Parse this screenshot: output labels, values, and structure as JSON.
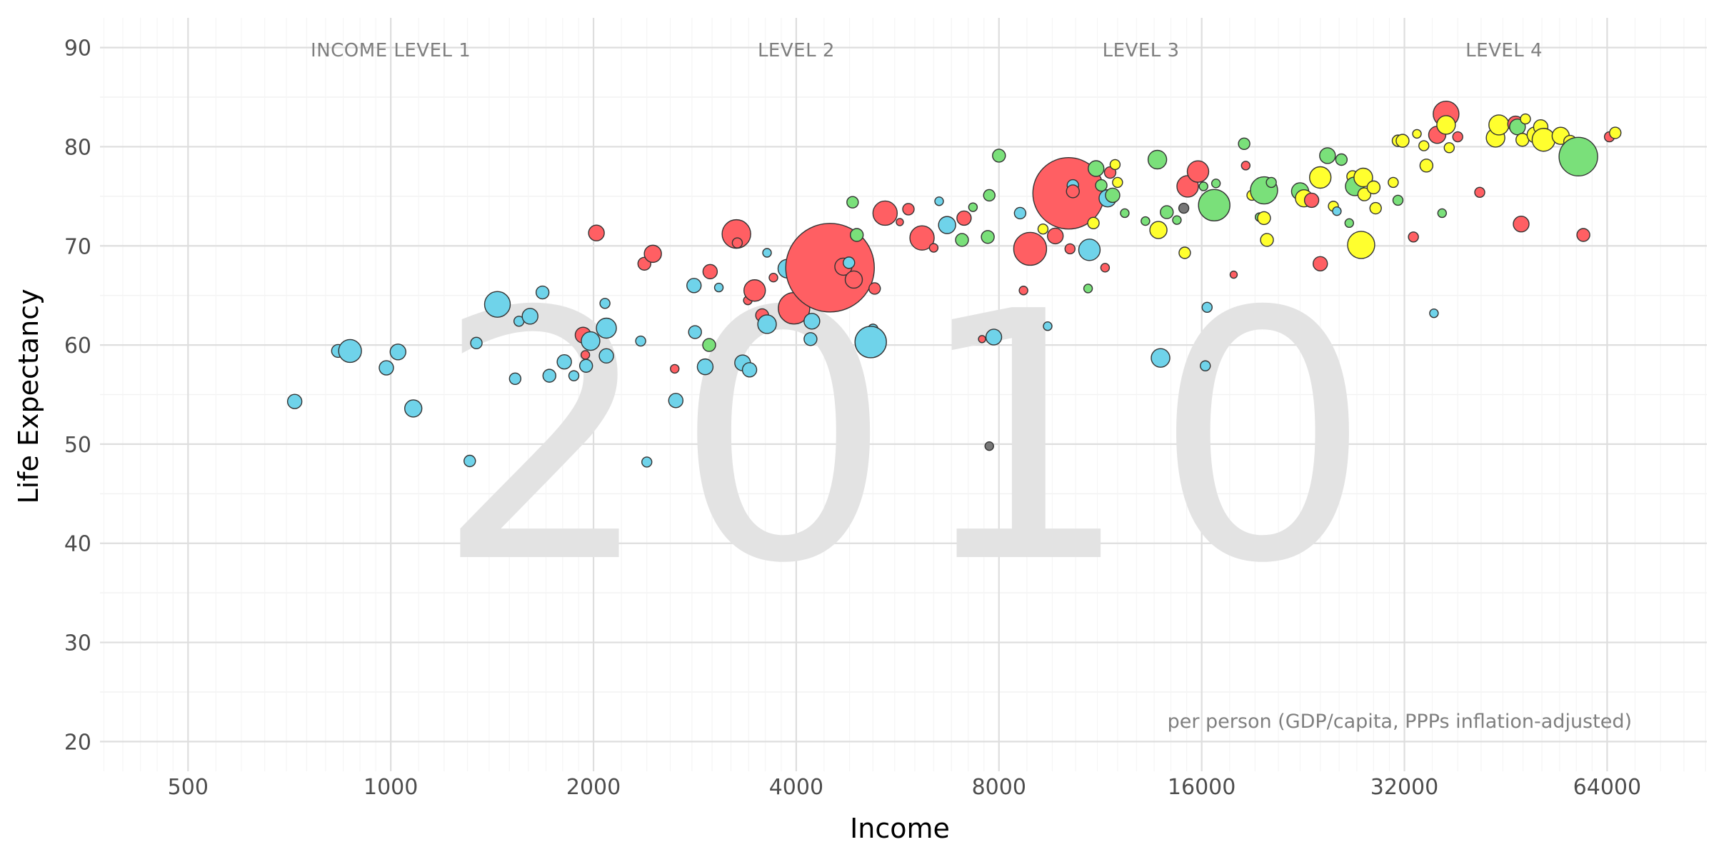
{
  "chart_data": {
    "type": "scatter",
    "title": "",
    "xlabel": "Income",
    "ylabel": "Life Expectancy",
    "x_scale": "log2",
    "xlim": [
      370,
      90000
    ],
    "ylim": [
      17,
      93
    ],
    "x_ticks": [
      500,
      1000,
      2000,
      4000,
      8000,
      16000,
      32000,
      64000
    ],
    "x_tick_labels": [
      "500",
      "1000",
      "2000",
      "4000",
      "8000",
      "16000",
      "32000",
      "64000"
    ],
    "y_ticks": [
      20,
      30,
      40,
      50,
      60,
      70,
      80,
      90
    ],
    "y_tick_labels": [
      "20",
      "30",
      "40",
      "50",
      "60",
      "70",
      "80",
      "90"
    ],
    "grid": true,
    "background_year": "2010",
    "income_levels": [
      {
        "label": "INCOME LEVEL 1",
        "x": 1000
      },
      {
        "label": "LEVEL 2",
        "x": 4000
      },
      {
        "label": "LEVEL 3",
        "x": 13000
      },
      {
        "label": "LEVEL 4",
        "x": 45000
      }
    ],
    "caption": "per person (GDP/capita, PPPs inflation-adjusted)",
    "colors": {
      "africa": "#6fd3ea",
      "asia": "#ff5f63",
      "americas": "#7ae07a",
      "europe": "#ffff2e",
      "other": "#777777"
    },
    "points": [
      {
        "x": 720,
        "y": 54.3,
        "s": 10,
        "c": "africa"
      },
      {
        "x": 835,
        "y": 59.4,
        "s": 9,
        "c": "africa"
      },
      {
        "x": 870,
        "y": 59.4,
        "s": 16,
        "c": "africa"
      },
      {
        "x": 985,
        "y": 57.7,
        "s": 10,
        "c": "africa"
      },
      {
        "x": 1025,
        "y": 59.3,
        "s": 11,
        "c": "africa"
      },
      {
        "x": 1080,
        "y": 53.6,
        "s": 12,
        "c": "africa"
      },
      {
        "x": 1310,
        "y": 48.3,
        "s": 8,
        "c": "africa"
      },
      {
        "x": 1340,
        "y": 60.2,
        "s": 8,
        "c": "africa"
      },
      {
        "x": 1440,
        "y": 64.1,
        "s": 18,
        "c": "africa"
      },
      {
        "x": 1530,
        "y": 56.6,
        "s": 8,
        "c": "africa"
      },
      {
        "x": 1550,
        "y": 62.4,
        "s": 7,
        "c": "africa"
      },
      {
        "x": 1610,
        "y": 62.9,
        "s": 11,
        "c": "africa"
      },
      {
        "x": 1680,
        "y": 65.3,
        "s": 9,
        "c": "africa"
      },
      {
        "x": 1720,
        "y": 56.9,
        "s": 9,
        "c": "africa"
      },
      {
        "x": 1810,
        "y": 58.3,
        "s": 10,
        "c": "africa"
      },
      {
        "x": 1870,
        "y": 56.9,
        "s": 7,
        "c": "africa"
      },
      {
        "x": 1930,
        "y": 61.0,
        "s": 11,
        "c": "asia"
      },
      {
        "x": 1945,
        "y": 59.0,
        "s": 6,
        "c": "asia"
      },
      {
        "x": 1950,
        "y": 57.9,
        "s": 9,
        "c": "africa"
      },
      {
        "x": 1980,
        "y": 60.4,
        "s": 13,
        "c": "africa"
      },
      {
        "x": 2020,
        "y": 71.3,
        "s": 11,
        "c": "asia"
      },
      {
        "x": 2080,
        "y": 64.2,
        "s": 7,
        "c": "africa"
      },
      {
        "x": 2090,
        "y": 61.7,
        "s": 14,
        "c": "africa"
      },
      {
        "x": 2090,
        "y": 58.9,
        "s": 10,
        "c": "africa"
      },
      {
        "x": 2350,
        "y": 60.4,
        "s": 7,
        "c": "africa"
      },
      {
        "x": 2380,
        "y": 68.2,
        "s": 9,
        "c": "asia"
      },
      {
        "x": 2400,
        "y": 48.2,
        "s": 7,
        "c": "africa"
      },
      {
        "x": 2450,
        "y": 69.2,
        "s": 12,
        "c": "asia"
      },
      {
        "x": 2640,
        "y": 57.6,
        "s": 6,
        "c": "asia"
      },
      {
        "x": 2650,
        "y": 54.4,
        "s": 10,
        "c": "africa"
      },
      {
        "x": 2820,
        "y": 66.0,
        "s": 10,
        "c": "africa"
      },
      {
        "x": 2830,
        "y": 61.3,
        "s": 9,
        "c": "africa"
      },
      {
        "x": 2930,
        "y": 57.8,
        "s": 11,
        "c": "africa"
      },
      {
        "x": 2970,
        "y": 60.0,
        "s": 9,
        "c": "americas"
      },
      {
        "x": 2980,
        "y": 67.4,
        "s": 10,
        "c": "asia"
      },
      {
        "x": 3070,
        "y": 65.8,
        "s": 6,
        "c": "africa"
      },
      {
        "x": 3260,
        "y": 71.2,
        "s": 20,
        "c": "asia"
      },
      {
        "x": 3270,
        "y": 70.3,
        "s": 7,
        "c": "asia"
      },
      {
        "x": 3330,
        "y": 58.2,
        "s": 11,
        "c": "africa"
      },
      {
        "x": 3410,
        "y": 57.5,
        "s": 10,
        "c": "africa"
      },
      {
        "x": 3390,
        "y": 64.5,
        "s": 6,
        "c": "asia"
      },
      {
        "x": 3470,
        "y": 65.5,
        "s": 15,
        "c": "asia"
      },
      {
        "x": 3560,
        "y": 63.0,
        "s": 9,
        "c": "asia"
      },
      {
        "x": 3620,
        "y": 69.3,
        "s": 6,
        "c": "africa"
      },
      {
        "x": 3620,
        "y": 62.1,
        "s": 13,
        "c": "africa"
      },
      {
        "x": 3700,
        "y": 66.8,
        "s": 6,
        "c": "asia"
      },
      {
        "x": 3850,
        "y": 64.2,
        "s": 6,
        "c": "asia"
      },
      {
        "x": 3880,
        "y": 67.7,
        "s": 13,
        "c": "africa"
      },
      {
        "x": 3970,
        "y": 63.7,
        "s": 22,
        "c": "asia"
      },
      {
        "x": 4220,
        "y": 62.4,
        "s": 11,
        "c": "africa"
      },
      {
        "x": 4200,
        "y": 60.6,
        "s": 9,
        "c": "africa"
      },
      {
        "x": 4380,
        "y": 70.4,
        "s": 7,
        "c": "asia"
      },
      {
        "x": 4490,
        "y": 67.8,
        "s": 62,
        "c": "asia"
      },
      {
        "x": 4700,
        "y": 67.9,
        "s": 12,
        "c": "asia"
      },
      {
        "x": 4790,
        "y": 68.3,
        "s": 8,
        "c": "africa"
      },
      {
        "x": 4850,
        "y": 74.4,
        "s": 8,
        "c": "americas"
      },
      {
        "x": 4870,
        "y": 66.6,
        "s": 12,
        "c": "asia"
      },
      {
        "x": 4920,
        "y": 71.1,
        "s": 9,
        "c": "americas"
      },
      {
        "x": 5200,
        "y": 61.6,
        "s": 7,
        "c": "africa"
      },
      {
        "x": 5160,
        "y": 60.3,
        "s": 22,
        "c": "africa"
      },
      {
        "x": 5230,
        "y": 65.7,
        "s": 8,
        "c": "asia"
      },
      {
        "x": 5420,
        "y": 73.3,
        "s": 17,
        "c": "asia"
      },
      {
        "x": 5700,
        "y": 72.4,
        "s": 5,
        "c": "asia"
      },
      {
        "x": 5870,
        "y": 73.7,
        "s": 8,
        "c": "asia"
      },
      {
        "x": 6150,
        "y": 70.8,
        "s": 17,
        "c": "asia"
      },
      {
        "x": 6400,
        "y": 69.8,
        "s": 6,
        "c": "asia"
      },
      {
        "x": 6520,
        "y": 74.5,
        "s": 6,
        "c": "africa"
      },
      {
        "x": 6700,
        "y": 72.1,
        "s": 12,
        "c": "africa"
      },
      {
        "x": 7050,
        "y": 70.6,
        "s": 9,
        "c": "americas"
      },
      {
        "x": 7100,
        "y": 72.8,
        "s": 10,
        "c": "asia"
      },
      {
        "x": 7320,
        "y": 73.9,
        "s": 6,
        "c": "americas"
      },
      {
        "x": 7550,
        "y": 60.6,
        "s": 5,
        "c": "asia"
      },
      {
        "x": 7700,
        "y": 70.9,
        "s": 9,
        "c": "americas"
      },
      {
        "x": 7740,
        "y": 75.1,
        "s": 8,
        "c": "americas"
      },
      {
        "x": 7740,
        "y": 49.8,
        "s": 6,
        "c": "other"
      },
      {
        "x": 7860,
        "y": 60.8,
        "s": 11,
        "c": "africa"
      },
      {
        "x": 8000,
        "y": 79.1,
        "s": 9,
        "c": "americas"
      },
      {
        "x": 8600,
        "y": 73.3,
        "s": 8,
        "c": "africa"
      },
      {
        "x": 8700,
        "y": 65.5,
        "s": 6,
        "c": "asia"
      },
      {
        "x": 8900,
        "y": 69.7,
        "s": 23,
        "c": "asia"
      },
      {
        "x": 9300,
        "y": 71.7,
        "s": 7,
        "c": "europe"
      },
      {
        "x": 9450,
        "y": 61.9,
        "s": 6,
        "c": "africa"
      },
      {
        "x": 9700,
        "y": 71.0,
        "s": 11,
        "c": "asia"
      },
      {
        "x": 9800,
        "y": 75.9,
        "s": 6,
        "c": "americas"
      },
      {
        "x": 10150,
        "y": 75.3,
        "s": 50,
        "c": "asia"
      },
      {
        "x": 10200,
        "y": 69.7,
        "s": 7,
        "c": "asia"
      },
      {
        "x": 10300,
        "y": 76.1,
        "s": 8,
        "c": "africa"
      },
      {
        "x": 10300,
        "y": 75.5,
        "s": 9,
        "c": "asia"
      },
      {
        "x": 10850,
        "y": 65.7,
        "s": 6,
        "c": "americas"
      },
      {
        "x": 10900,
        "y": 69.6,
        "s": 15,
        "c": "africa"
      },
      {
        "x": 11050,
        "y": 72.3,
        "s": 8,
        "c": "europe"
      },
      {
        "x": 11150,
        "y": 77.8,
        "s": 11,
        "c": "americas"
      },
      {
        "x": 11350,
        "y": 76.1,
        "s": 8,
        "c": "americas"
      },
      {
        "x": 11500,
        "y": 67.8,
        "s": 6,
        "c": "asia"
      },
      {
        "x": 11600,
        "y": 74.8,
        "s": 12,
        "c": "africa"
      },
      {
        "x": 11700,
        "y": 77.4,
        "s": 8,
        "c": "asia"
      },
      {
        "x": 11800,
        "y": 75.1,
        "s": 10,
        "c": "americas"
      },
      {
        "x": 11900,
        "y": 78.2,
        "s": 7,
        "c": "europe"
      },
      {
        "x": 12000,
        "y": 76.4,
        "s": 7,
        "c": "europe"
      },
      {
        "x": 12300,
        "y": 73.3,
        "s": 6,
        "c": "americas"
      },
      {
        "x": 13200,
        "y": 72.5,
        "s": 6,
        "c": "americas"
      },
      {
        "x": 13750,
        "y": 78.7,
        "s": 13,
        "c": "americas"
      },
      {
        "x": 13800,
        "y": 71.6,
        "s": 12,
        "c": "europe"
      },
      {
        "x": 13900,
        "y": 58.7,
        "s": 13,
        "c": "africa"
      },
      {
        "x": 14200,
        "y": 73.4,
        "s": 9,
        "c": "americas"
      },
      {
        "x": 14700,
        "y": 72.6,
        "s": 6,
        "c": "americas"
      },
      {
        "x": 15050,
        "y": 73.8,
        "s": 7,
        "c": "other"
      },
      {
        "x": 15100,
        "y": 69.3,
        "s": 8,
        "c": "europe"
      },
      {
        "x": 15250,
        "y": 76.0,
        "s": 15,
        "c": "asia"
      },
      {
        "x": 15800,
        "y": 77.5,
        "s": 15,
        "c": "asia"
      },
      {
        "x": 16100,
        "y": 76.0,
        "s": 6,
        "c": "americas"
      },
      {
        "x": 16200,
        "y": 57.9,
        "s": 7,
        "c": "africa"
      },
      {
        "x": 16300,
        "y": 63.8,
        "s": 7,
        "c": "africa"
      },
      {
        "x": 16600,
        "y": 74.3,
        "s": 8,
        "c": "europe"
      },
      {
        "x": 16700,
        "y": 74.1,
        "s": 22,
        "c": "americas"
      },
      {
        "x": 16800,
        "y": 76.3,
        "s": 6,
        "c": "americas"
      },
      {
        "x": 17850,
        "y": 67.1,
        "s": 5,
        "c": "asia"
      },
      {
        "x": 18500,
        "y": 80.3,
        "s": 8,
        "c": "americas"
      },
      {
        "x": 18600,
        "y": 78.1,
        "s": 6,
        "c": "asia"
      },
      {
        "x": 19000,
        "y": 75.1,
        "s": 7,
        "c": "europe"
      },
      {
        "x": 19500,
        "y": 72.9,
        "s": 6,
        "c": "americas"
      },
      {
        "x": 19700,
        "y": 75.4,
        "s": 12,
        "c": "asia"
      },
      {
        "x": 19800,
        "y": 75.6,
        "s": 19,
        "c": "americas"
      },
      {
        "x": 19800,
        "y": 72.8,
        "s": 9,
        "c": "europe"
      },
      {
        "x": 20000,
        "y": 70.6,
        "s": 9,
        "c": "europe"
      },
      {
        "x": 20300,
        "y": 76.4,
        "s": 7,
        "c": "americas"
      },
      {
        "x": 22400,
        "y": 75.5,
        "s": 12,
        "c": "americas"
      },
      {
        "x": 22700,
        "y": 74.8,
        "s": 12,
        "c": "europe"
      },
      {
        "x": 23300,
        "y": 74.6,
        "s": 10,
        "c": "asia"
      },
      {
        "x": 24000,
        "y": 68.2,
        "s": 10,
        "c": "asia"
      },
      {
        "x": 24000,
        "y": 76.9,
        "s": 15,
        "c": "europe"
      },
      {
        "x": 24600,
        "y": 79.1,
        "s": 11,
        "c": "americas"
      },
      {
        "x": 25100,
        "y": 74.0,
        "s": 7,
        "c": "europe"
      },
      {
        "x": 25400,
        "y": 73.5,
        "s": 6,
        "c": "africa"
      },
      {
        "x": 25800,
        "y": 78.7,
        "s": 8,
        "c": "americas"
      },
      {
        "x": 26500,
        "y": 72.3,
        "s": 6,
        "c": "americas"
      },
      {
        "x": 26800,
        "y": 77.0,
        "s": 8,
        "c": "europe"
      },
      {
        "x": 27000,
        "y": 76.0,
        "s": 13,
        "c": "americas"
      },
      {
        "x": 27600,
        "y": 70.1,
        "s": 19,
        "c": "europe"
      },
      {
        "x": 27800,
        "y": 76.9,
        "s": 13,
        "c": "europe"
      },
      {
        "x": 27900,
        "y": 75.2,
        "s": 9,
        "c": "europe"
      },
      {
        "x": 28800,
        "y": 75.9,
        "s": 9,
        "c": "europe"
      },
      {
        "x": 29000,
        "y": 73.8,
        "s": 8,
        "c": "europe"
      },
      {
        "x": 30800,
        "y": 76.4,
        "s": 7,
        "c": "europe"
      },
      {
        "x": 31300,
        "y": 74.6,
        "s": 7,
        "c": "americas"
      },
      {
        "x": 31300,
        "y": 80.6,
        "s": 8,
        "c": "europe"
      },
      {
        "x": 31800,
        "y": 80.6,
        "s": 9,
        "c": "europe"
      },
      {
        "x": 33000,
        "y": 70.9,
        "s": 7,
        "c": "asia"
      },
      {
        "x": 33400,
        "y": 81.3,
        "s": 6,
        "c": "europe"
      },
      {
        "x": 34200,
        "y": 80.1,
        "s": 7,
        "c": "europe"
      },
      {
        "x": 34500,
        "y": 78.1,
        "s": 9,
        "c": "europe"
      },
      {
        "x": 35400,
        "y": 63.2,
        "s": 6,
        "c": "africa"
      },
      {
        "x": 35800,
        "y": 81.2,
        "s": 12,
        "c": "asia"
      },
      {
        "x": 36400,
        "y": 73.3,
        "s": 6,
        "c": "americas"
      },
      {
        "x": 36900,
        "y": 83.3,
        "s": 18,
        "c": "asia"
      },
      {
        "x": 36900,
        "y": 82.2,
        "s": 13,
        "c": "europe"
      },
      {
        "x": 37300,
        "y": 79.9,
        "s": 7,
        "c": "europe"
      },
      {
        "x": 38400,
        "y": 81.0,
        "s": 7,
        "c": "asia"
      },
      {
        "x": 41400,
        "y": 75.4,
        "s": 7,
        "c": "asia"
      },
      {
        "x": 43700,
        "y": 80.9,
        "s": 13,
        "c": "europe"
      },
      {
        "x": 44200,
        "y": 82.2,
        "s": 14,
        "c": "europe"
      },
      {
        "x": 46800,
        "y": 82.3,
        "s": 11,
        "c": "asia"
      },
      {
        "x": 47100,
        "y": 82.0,
        "s": 11,
        "c": "americas"
      },
      {
        "x": 47700,
        "y": 72.2,
        "s": 11,
        "c": "asia"
      },
      {
        "x": 47900,
        "y": 80.7,
        "s": 9,
        "c": "europe"
      },
      {
        "x": 48400,
        "y": 82.8,
        "s": 7,
        "c": "europe"
      },
      {
        "x": 50000,
        "y": 81.2,
        "s": 11,
        "c": "europe"
      },
      {
        "x": 51000,
        "y": 82.0,
        "s": 10,
        "c": "europe"
      },
      {
        "x": 51500,
        "y": 80.7,
        "s": 16,
        "c": "europe"
      },
      {
        "x": 54600,
        "y": 81.1,
        "s": 12,
        "c": "europe"
      },
      {
        "x": 56400,
        "y": 80.5,
        "s": 9,
        "c": "europe"
      },
      {
        "x": 58000,
        "y": 79.0,
        "s": 27,
        "c": "americas"
      },
      {
        "x": 59000,
        "y": 71.1,
        "s": 9,
        "c": "asia"
      },
      {
        "x": 64500,
        "y": 81.0,
        "s": 7,
        "c": "asia"
      },
      {
        "x": 65800,
        "y": 81.4,
        "s": 8,
        "c": "europe"
      }
    ]
  }
}
